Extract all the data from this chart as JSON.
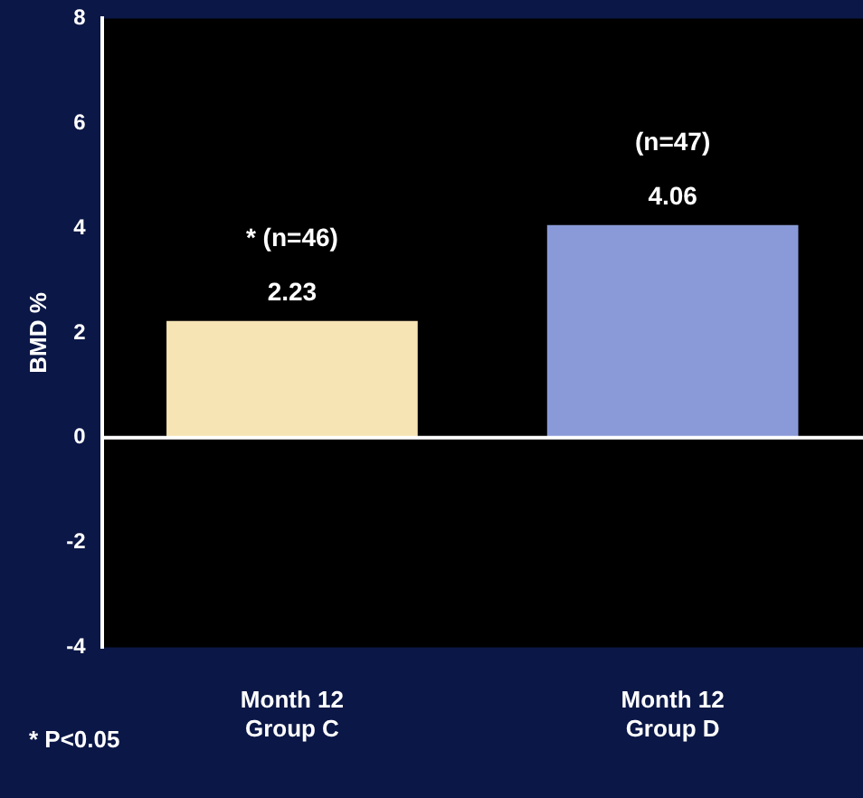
{
  "chart_data": {
    "type": "bar",
    "ylabel": "BMD %",
    "categories": [
      "Month 12\nGroup C",
      "Month 12\nGroup D"
    ],
    "values": [
      2.23,
      4.06
    ],
    "colors": [
      "#f6e4b4",
      "#8a9ad8"
    ],
    "ylim": [
      -4,
      8
    ],
    "yticks": [
      -4,
      -2,
      0,
      2,
      4,
      6,
      8
    ],
    "data_labels": true,
    "grid": false,
    "legend": false,
    "ref_lines": [
      {
        "axis": "y",
        "value": 0,
        "color": "#ffffff"
      }
    ],
    "annotations": [
      {
        "text": "* (n=46)",
        "x": "Month 12\nGroup C",
        "y": 2.23
      },
      {
        "text": "(n=47)",
        "x": "Month 12\nGroup D",
        "y": 4.06
      },
      "* P<0.05"
    ]
  }
}
